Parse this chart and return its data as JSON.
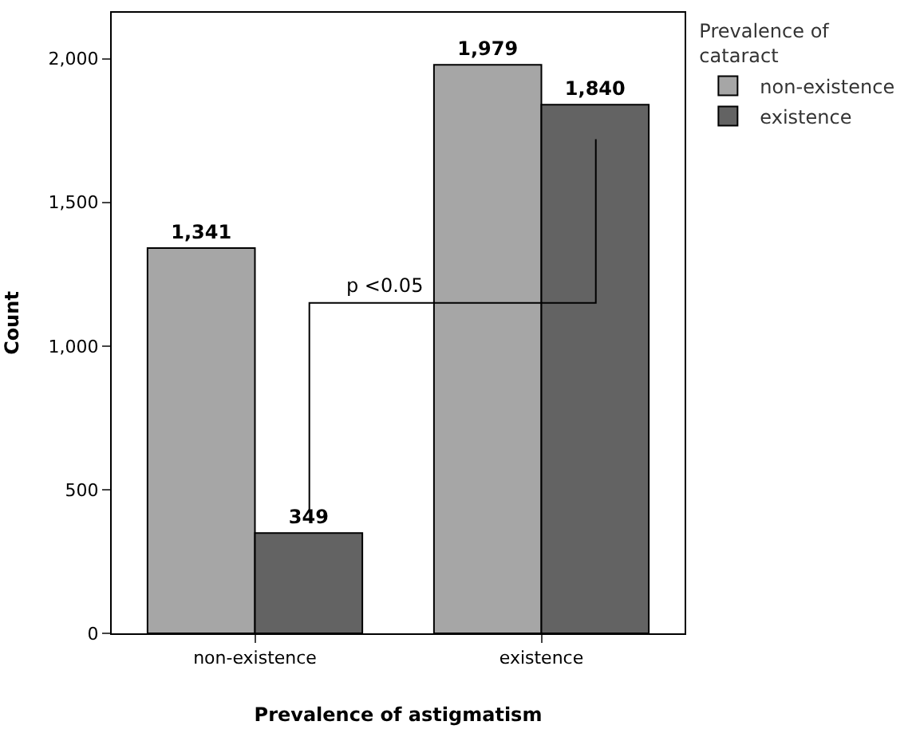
{
  "chart_data": {
    "type": "bar",
    "xlabel": "Prevalence of astigmatism",
    "ylabel": "Count",
    "legend_title": "Prevalence of cataract",
    "categories": [
      "non-existence",
      "existence"
    ],
    "series": [
      {
        "name": "non-existence",
        "color": "#a6a6a6",
        "values": [
          1341,
          1979
        ],
        "value_labels": [
          "1,341",
          "1,979"
        ]
      },
      {
        "name": "existence",
        "color": "#636363",
        "values": [
          349,
          1840
        ],
        "value_labels": [
          "349",
          "1,840"
        ]
      }
    ],
    "ylim": [
      0,
      2160
    ],
    "yticks": [
      0,
      500,
      {
        "value": 1000,
        "label": "1,000"
      },
      {
        "value": 1500,
        "label": "1,500"
      },
      {
        "value": 2000,
        "label": "2,000"
      }
    ],
    "legend": "top right",
    "annotations": [
      "p <0.05"
    ]
  }
}
